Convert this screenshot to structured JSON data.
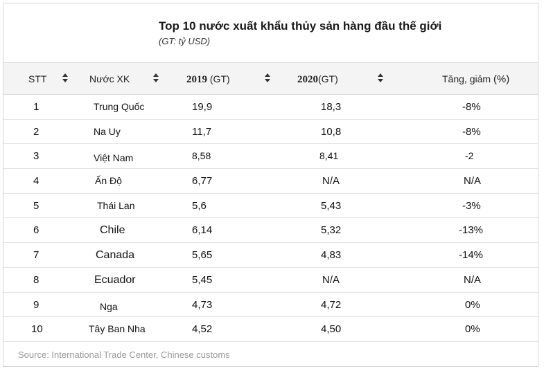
{
  "title": "Top 10 nước xuất khẩu thủy sản hàng đầu thế giới",
  "subtitle": "(GT: tỷ USD)",
  "headers": {
    "stt": "STT",
    "country": "Nước XK",
    "y2019_year": "2019",
    "y2019_unit": "(GT)",
    "y2020_year": "2020",
    "y2020_unit": "(GT)",
    "change_label": "Tăng, giảm",
    "change_unit": "(%)"
  },
  "rows": [
    {
      "stt": "1",
      "country": "Trung Quốc",
      "v2019": "19,9",
      "v2020": "18,3",
      "change": "-8%"
    },
    {
      "stt": "2",
      "country": "Na Uy",
      "v2019": "11,7",
      "v2020": "10,8",
      "change": "-8%"
    },
    {
      "stt": "3",
      "country": "Việt Nam",
      "v2019": "8,58",
      "v2020": "8,41",
      "change": "-2"
    },
    {
      "stt": "4",
      "country": "Ấn Độ",
      "v2019": "6,77",
      "v2020": "N/A",
      "change": "N/A"
    },
    {
      "stt": "5",
      "country": "Thái Lan",
      "v2019": "5,6",
      "v2020": "5,43",
      "change": "-3%"
    },
    {
      "stt": "6",
      "country": "Chile",
      "v2019": "6,14",
      "v2020": "5,32",
      "change": "-13%"
    },
    {
      "stt": "7",
      "country": "Canada",
      "v2019": "5,65",
      "v2020": "4,83",
      "change": "-14%"
    },
    {
      "stt": "8",
      "country": "Ecuador",
      "v2019": "5,45",
      "v2020": "N/A",
      "change": "N/A"
    },
    {
      "stt": "9",
      "country": "Nga",
      "v2019": "4,73",
      "v2020": "4,72",
      "change": "0%"
    },
    {
      "stt": "10",
      "country": "Tây Ban Nha",
      "v2019": "4,52",
      "v2020": "4,50",
      "change": "0%"
    }
  ],
  "source": "Source: International Trade Center, Chinese customs"
}
